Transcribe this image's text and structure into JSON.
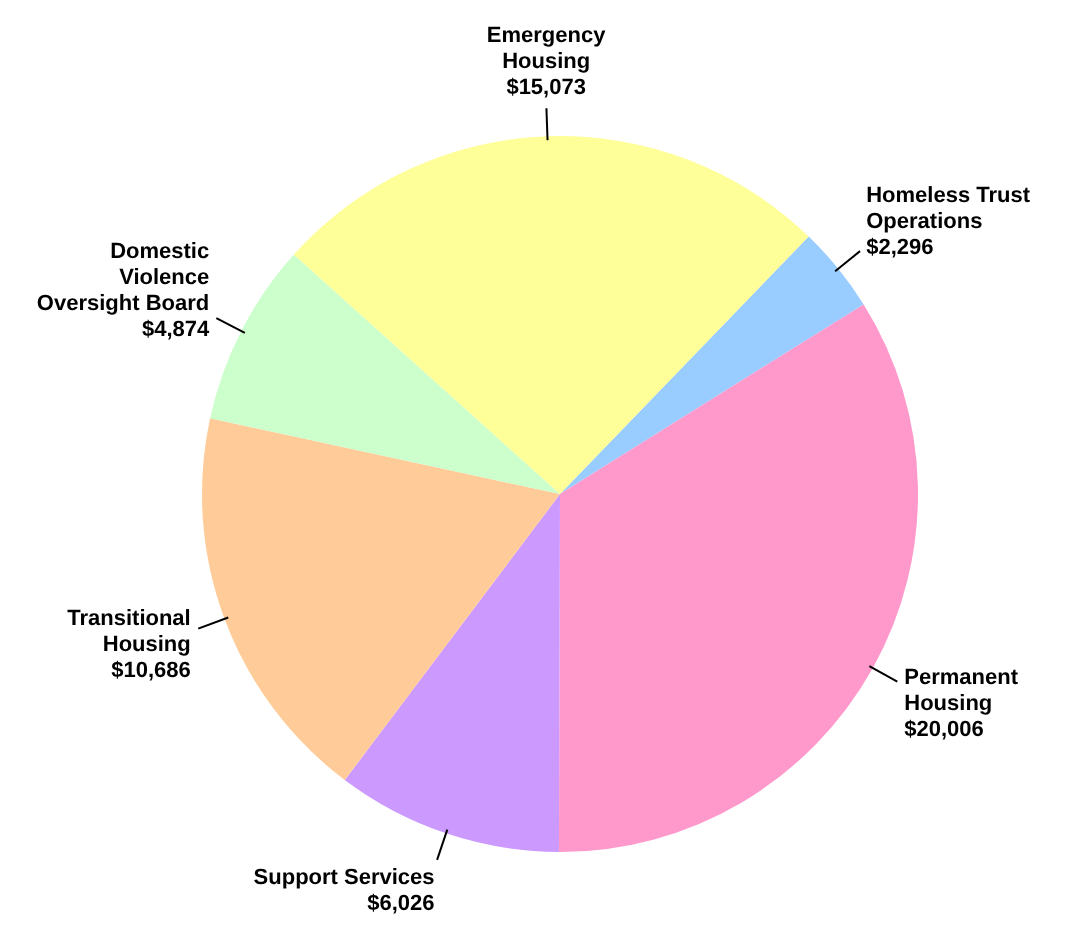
{
  "chart_data": {
    "type": "pie",
    "categories": [
      "Homeless Trust Operations",
      "Permanent Housing",
      "Support Services",
      "Transitional Housing",
      "Domestic Violence Oversight Board",
      "Emergency Housing"
    ],
    "values": [
      2296,
      20006,
      6026,
      10686,
      4874,
      15073
    ],
    "colors": [
      "#99ccff",
      "#ff99cc",
      "#cc99ff",
      "#ffcc99",
      "#ccffcc",
      "#ffff99"
    ],
    "value_labels": [
      "$2,296",
      "$20,006",
      "$6,026",
      "$10,686",
      "$4,874",
      "$15,073"
    ]
  }
}
